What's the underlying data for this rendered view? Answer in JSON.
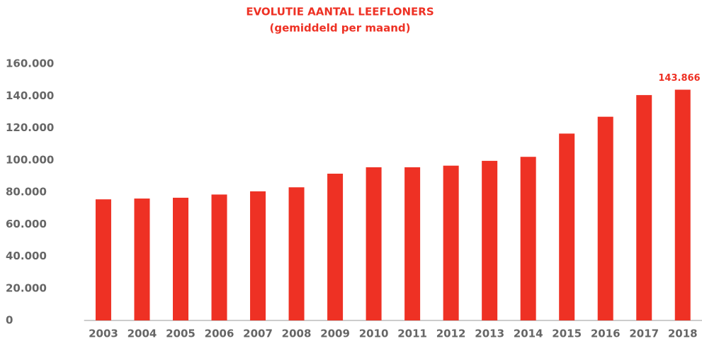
{
  "chart_data": {
    "type": "bar",
    "title": "EVOLUTIE AANTAL LEEFLONERS",
    "subtitle": "(gemiddeld per maand)",
    "categories": [
      "2003",
      "2004",
      "2005",
      "2006",
      "2007",
      "2008",
      "2009",
      "2010",
      "2011",
      "2012",
      "2013",
      "2014",
      "2015",
      "2016",
      "2017",
      "2018"
    ],
    "values": [
      75500,
      76000,
      76500,
      78500,
      80500,
      83000,
      91500,
      95500,
      95500,
      96500,
      99500,
      102000,
      116500,
      127000,
      140500,
      143866
    ],
    "value_labels": [
      null,
      null,
      null,
      null,
      null,
      null,
      null,
      null,
      null,
      null,
      null,
      null,
      null,
      null,
      null,
      "143.866"
    ],
    "color": "#ee3124",
    "ylim": [
      0,
      160000
    ],
    "yticks": [
      0,
      {
        "value": 20000,
        "label": "20.000"
      },
      {
        "value": 40000,
        "label": "40.000"
      },
      {
        "value": 60000,
        "label": "60.000"
      },
      {
        "value": 80000,
        "label": "80.000"
      },
      {
        "value": 100000,
        "label": "100.000"
      },
      {
        "value": 120000,
        "label": "120.000"
      },
      {
        "value": 140000,
        "label": "140.000"
      },
      {
        "value": 160000,
        "label": "160.000"
      }
    ],
    "grid": false
  }
}
